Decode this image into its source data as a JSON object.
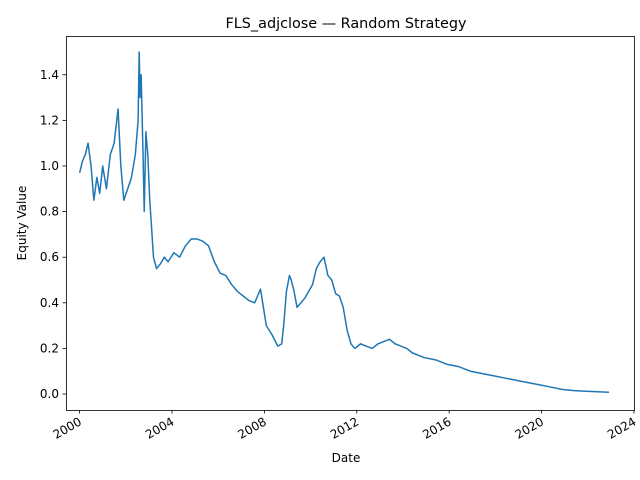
{
  "chart_data": {
    "type": "line",
    "title": "FLS_adjclose — Random Strategy",
    "xlabel": "Date",
    "ylabel": "Equity Value",
    "x_ticks": [
      "2000",
      "2004",
      "2008",
      "2012",
      "2016",
      "2020",
      "2024"
    ],
    "y_ticks": [
      "0.0",
      "0.2",
      "0.4",
      "0.6",
      "0.8",
      "1.0",
      "1.2",
      "1.4"
    ],
    "xlim": [
      "1999-06-01",
      "2024-01-01"
    ],
    "ylim": [
      -0.07,
      1.57
    ],
    "grid": false,
    "line_color": "#1f77b4",
    "series": [
      {
        "x": [
          "2000-01-03",
          "2000-02-15",
          "2000-04-01",
          "2000-05-15",
          "2000-07-01",
          "2000-08-15",
          "2000-10-01",
          "2000-11-15",
          "2001-01-01",
          "2001-03-01",
          "2001-05-01",
          "2001-07-01",
          "2001-09-01",
          "2001-10-15",
          "2001-12-01",
          "2002-02-01",
          "2002-04-01",
          "2002-06-01",
          "2002-07-15",
          "2002-08-01",
          "2002-08-15",
          "2002-09-01",
          "2002-10-01",
          "2002-10-20",
          "2002-11-15",
          "2002-12-15",
          "2003-01-15",
          "2003-02-15",
          "2003-03-15",
          "2003-05-01",
          "2003-07-01",
          "2003-09-01",
          "2003-11-01",
          "2004-02-01",
          "2004-05-01",
          "2004-08-01",
          "2004-11-01",
          "2005-02-01",
          "2005-05-01",
          "2005-08-01",
          "2005-11-01",
          "2006-02-01",
          "2006-05-01",
          "2006-08-01",
          "2006-11-01",
          "2007-02-01",
          "2007-05-01",
          "2007-08-01",
          "2007-11-01",
          "2008-02-01",
          "2008-05-01",
          "2008-08-01",
          "2008-10-01",
          "2008-11-01",
          "2008-12-15",
          "2009-02-01",
          "2009-03-01",
          "2009-04-15",
          "2009-06-01",
          "2009-08-01",
          "2009-10-01",
          "2009-12-01",
          "2010-02-01",
          "2010-04-01",
          "2010-06-01",
          "2010-08-01",
          "2010-10-01",
          "2010-12-01",
          "2011-02-01",
          "2011-04-01",
          "2011-06-01",
          "2011-08-01",
          "2011-10-01",
          "2011-12-01",
          "2012-03-01",
          "2012-06-01",
          "2012-09-01",
          "2012-12-01",
          "2013-03-01",
          "2013-06-01",
          "2013-09-01",
          "2013-12-01",
          "2014-03-01",
          "2014-06-01",
          "2014-09-01",
          "2014-12-01",
          "2015-06-01",
          "2015-12-01",
          "2016-06-01",
          "2016-12-01",
          "2017-06-01",
          "2017-12-01",
          "2018-06-01",
          "2018-12-01",
          "2019-06-01",
          "2019-12-01",
          "2020-06-01",
          "2020-12-01",
          "2021-06-01",
          "2021-12-01",
          "2022-06-01",
          "2022-12-01"
        ],
        "values": [
          0.97,
          1.02,
          1.05,
          1.1,
          1.0,
          0.85,
          0.95,
          0.88,
          1.0,
          0.9,
          1.05,
          1.1,
          1.25,
          1.0,
          0.85,
          0.9,
          0.95,
          1.05,
          1.2,
          1.5,
          1.3,
          1.4,
          1.05,
          0.8,
          1.15,
          1.05,
          0.85,
          0.72,
          0.6,
          0.55,
          0.57,
          0.6,
          0.58,
          0.62,
          0.6,
          0.65,
          0.68,
          0.68,
          0.67,
          0.65,
          0.58,
          0.53,
          0.52,
          0.48,
          0.45,
          0.43,
          0.41,
          0.4,
          0.46,
          0.3,
          0.26,
          0.21,
          0.22,
          0.3,
          0.45,
          0.52,
          0.5,
          0.45,
          0.38,
          0.4,
          0.42,
          0.45,
          0.48,
          0.55,
          0.58,
          0.6,
          0.52,
          0.5,
          0.44,
          0.43,
          0.38,
          0.28,
          0.22,
          0.2,
          0.22,
          0.21,
          0.2,
          0.22,
          0.23,
          0.24,
          0.22,
          0.21,
          0.2,
          0.18,
          0.17,
          0.16,
          0.15,
          0.13,
          0.12,
          0.1,
          0.09,
          0.08,
          0.07,
          0.06,
          0.05,
          0.04,
          0.03,
          0.02,
          0.015,
          0.012,
          0.01,
          0.008
        ]
      }
    ]
  }
}
